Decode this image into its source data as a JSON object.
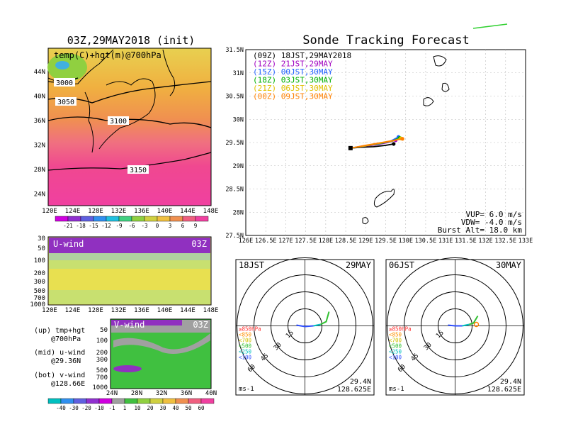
{
  "left": {
    "init_title": "03Z,29MAY2018 (init)",
    "map_label": "temp(C)+hgt(m)@700hPa",
    "lat_ticks": [
      "44N",
      "40N",
      "36N",
      "32N",
      "28N",
      "24N"
    ],
    "lon_ticks": [
      "120E",
      "124E",
      "128E",
      "132E",
      "136E",
      "140E",
      "144E",
      "148E"
    ],
    "contour_labels": [
      "3000",
      "3050",
      "3100",
      "3150"
    ],
    "temp_colorbar": [
      "-21",
      "-18",
      "-15",
      "-12",
      "-9",
      "-6",
      "-3",
      "0",
      "3",
      "6",
      "9"
    ],
    "u_panel_label": "U-wind",
    "u_panel_time": "03Z",
    "p_ticks": [
      "30",
      "50",
      "100",
      "200",
      "300",
      "500",
      "700",
      "1000"
    ],
    "v_panel_label": "V-wind",
    "v_panel_time": "03Z",
    "v_p_ticks": [
      "50",
      "100",
      "200",
      "300",
      "500",
      "700",
      "1000"
    ],
    "v_lat_ticks": [
      "24N",
      "28N",
      "32N",
      "36N",
      "40N"
    ],
    "wind_colorbar": [
      "-40",
      "-30",
      "-20",
      "-10",
      "-1",
      "1",
      "10",
      "20",
      "30",
      "40",
      "50",
      "60"
    ],
    "legend_up_1": "(up) tmp+hgt",
    "legend_up_2": "@700hPa",
    "legend_mid_1": "(mid) u-wind",
    "legend_mid_2": "@29.36N",
    "legend_bot_1": "(bot) v-wind",
    "legend_bot_2": "@128.66E"
  },
  "main": {
    "title": "Sonde Tracking Forecast",
    "legend": [
      {
        "text": "(09Z)  18JST,29MAY2018",
        "color": "#000000"
      },
      {
        "text": "(12Z)  21JST,29MAY",
        "color": "#a000c0"
      },
      {
        "text": "(15Z)  00JST,30MAY",
        "color": "#2060ff"
      },
      {
        "text": "(18Z)  03JST,30MAY",
        "color": "#00b000"
      },
      {
        "text": "(21Z)  06JST,30MAY",
        "color": "#e0c000"
      },
      {
        "text": "(00Z)  09JST,30MAY",
        "color": "#ff8000"
      }
    ],
    "vup": "VUP=  6.0  m/s",
    "vdw": "VDW= -4.0  m/s",
    "burst": "Burst Alt=  18.0  km"
  },
  "hodo_left": {
    "time": "18JST",
    "date": "29MAY",
    "lat": "29.4N",
    "lon": "128.625E",
    "unit": "ms-1"
  },
  "hodo_right": {
    "time": "06JST",
    "date": "30MAY",
    "lat": "29.4N",
    "lon": "128.625E",
    "unit": "ms-1"
  },
  "hodo_rings": [
    "15",
    "30",
    "45",
    "60"
  ],
  "hodo_levels": [
    {
      "text": "≥850hPa",
      "color": "#ff3030"
    },
    {
      "text": "<850",
      "color": "#ff9000"
    },
    {
      "text": "<700",
      "color": "#d0c000"
    },
    {
      "text": "<500",
      "color": "#30c030"
    },
    {
      "text": "<250",
      "color": "#00c0c0"
    },
    {
      "text": "<100",
      "color": "#3050ff"
    }
  ],
  "colors": {
    "land_line": "#000000",
    "grid": "#cccccc"
  },
  "chart_data": {
    "type": "line",
    "title": "Sonde Tracking Forecast",
    "x_ticks": [
      "126E",
      "126.5E",
      "127E",
      "127.5E",
      "128E",
      "128.5E",
      "129E",
      "129.5E",
      "130E",
      "130.5E",
      "131E",
      "131.5E",
      "132E",
      "132.5E",
      "133E"
    ],
    "y_ticks": [
      "27.5N",
      "28N",
      "28.5N",
      "29N",
      "29.5N",
      "30N",
      "30.5N",
      "31N",
      "31.5N"
    ],
    "xlim": [
      126,
      133
    ],
    "ylim": [
      27.5,
      31.5
    ],
    "grid": true,
    "series": [
      {
        "name": "(09Z)  18JST,29MAY2018",
        "color": "#000000",
        "x": [
          128.62,
          128.9,
          129.2,
          129.5,
          129.7
        ],
        "y": [
          29.38,
          29.4,
          29.41,
          29.44,
          29.47
        ]
      },
      {
        "name": "(12Z)  21JST,29MAY",
        "color": "#a000c0",
        "x": [
          128.62,
          128.95,
          129.25,
          129.55,
          129.75
        ],
        "y": [
          29.38,
          29.42,
          29.45,
          29.5,
          29.55
        ]
      },
      {
        "name": "(15Z)  00JST,30MAY",
        "color": "#2060ff",
        "x": [
          128.62,
          128.95,
          129.3,
          129.6,
          129.82
        ],
        "y": [
          29.38,
          29.43,
          29.47,
          29.52,
          29.62
        ]
      },
      {
        "name": "(18Z)  03JST,30MAY",
        "color": "#00b000",
        "x": [
          128.62,
          129.0,
          129.35,
          129.65,
          129.85
        ],
        "y": [
          29.38,
          29.43,
          29.48,
          29.53,
          29.6
        ]
      },
      {
        "name": "(21Z)  06JST,30MAY",
        "color": "#e0c000",
        "x": [
          128.62,
          129.0,
          129.38,
          129.7,
          129.88
        ],
        "y": [
          29.38,
          29.43,
          29.49,
          29.54,
          29.59
        ]
      },
      {
        "name": "(00Z)  09JST,30MAY",
        "color": "#ff8000",
        "x": [
          128.62,
          129.0,
          129.4,
          129.72,
          129.92
        ],
        "y": [
          29.38,
          29.44,
          29.5,
          29.55,
          29.58
        ]
      }
    ]
  }
}
